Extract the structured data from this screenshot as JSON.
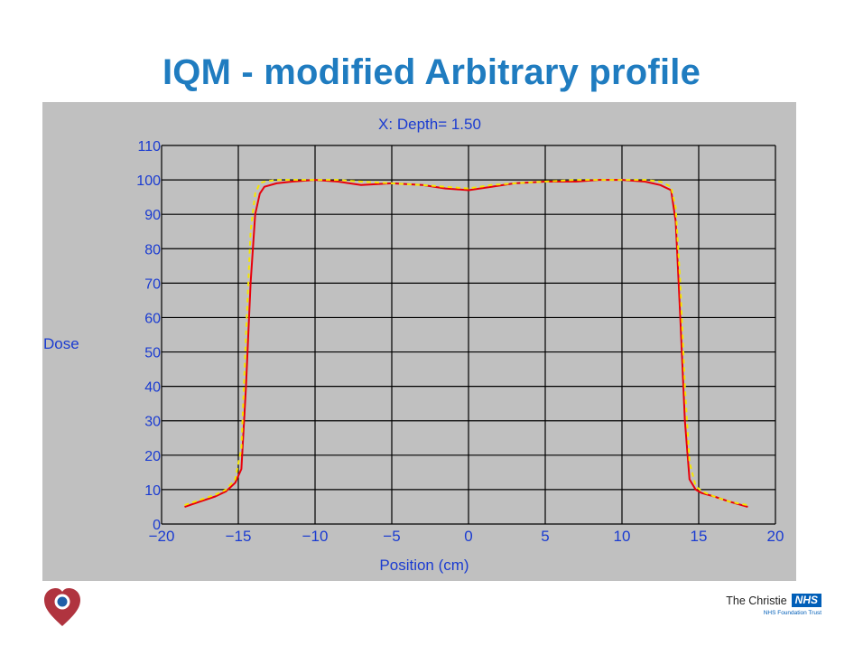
{
  "slide": {
    "title": "IQM - modified Arbitrary profile"
  },
  "branding": {
    "name": "The Christie",
    "badge": "NHS",
    "subtitle": "NHS Foundation Trust",
    "logo_icon": "heart-pin-icon",
    "brand_blue": "#005eb8",
    "logo_red": "#b0343f"
  },
  "colors": {
    "title": "#1f7cc0",
    "panel_bg": "#c0c0c0",
    "axis_text": "#1a3bd1",
    "grid": "#000000",
    "series_red": "#e8000b",
    "series_yellow": "#f5e600"
  },
  "chart_data": {
    "type": "line",
    "title": "X: Depth=  1.50",
    "xlabel": "Position (cm)",
    "ylabel": "Dose",
    "xlim": [
      -20,
      20
    ],
    "ylim": [
      0,
      110
    ],
    "xticks": [
      -20,
      -15,
      -10,
      -5,
      0,
      5,
      10,
      15,
      20
    ],
    "yticks": [
      0,
      10,
      20,
      30,
      40,
      50,
      60,
      70,
      80,
      90,
      100,
      110
    ],
    "grid": true,
    "series": [
      {
        "color": "#e8000b",
        "x": [
          -18.5,
          -17.5,
          -16.5,
          -15.8,
          -15.2,
          -14.8,
          -14.5,
          -14.2,
          -13.9,
          -13.6,
          -13.3,
          -12.5,
          -11.5,
          -10,
          -8.5,
          -7,
          -5,
          -3,
          -1.5,
          0,
          1.5,
          3,
          5,
          7,
          8.5,
          10,
          11.5,
          12.5,
          13.2,
          13.5,
          13.8,
          14.1,
          14.4,
          14.8,
          15.2,
          16,
          17,
          18.2
        ],
        "y": [
          5,
          6.5,
          8,
          9.5,
          12,
          16,
          40,
          70,
          90,
          96,
          98,
          99,
          99.5,
          100,
          99.5,
          98.5,
          99,
          98.5,
          97.5,
          97,
          98,
          99,
          99.5,
          99.5,
          100,
          100,
          99.5,
          98.5,
          97,
          88,
          60,
          30,
          13,
          10,
          9,
          8,
          6.5,
          5
        ]
      },
      {
        "color": "#f5e600",
        "x": [
          -18.5,
          -17.5,
          -16.5,
          -15.8,
          -15.2,
          -14.8,
          -14.5,
          -14.2,
          -13.9,
          -13.6,
          -13.3,
          -12.5,
          -11.5,
          -10,
          -8.5,
          -7,
          -5,
          -3,
          -1.5,
          0,
          1.5,
          3,
          5,
          7,
          8.5,
          10,
          11.5,
          12.5,
          13.2,
          13.5,
          13.8,
          14.1,
          14.4,
          14.8,
          15.2,
          16,
          17,
          18.2
        ],
        "y": [
          5.5,
          7,
          8.5,
          10,
          13,
          22,
          55,
          85,
          96,
          99,
          99.5,
          100,
          100,
          100,
          100,
          99.5,
          99,
          98.5,
          98,
          97.5,
          98.5,
          99,
          99.5,
          100,
          100,
          100,
          100,
          99.5,
          98,
          92,
          70,
          40,
          18,
          11,
          9.5,
          8,
          6.5,
          5.5
        ]
      }
    ]
  }
}
